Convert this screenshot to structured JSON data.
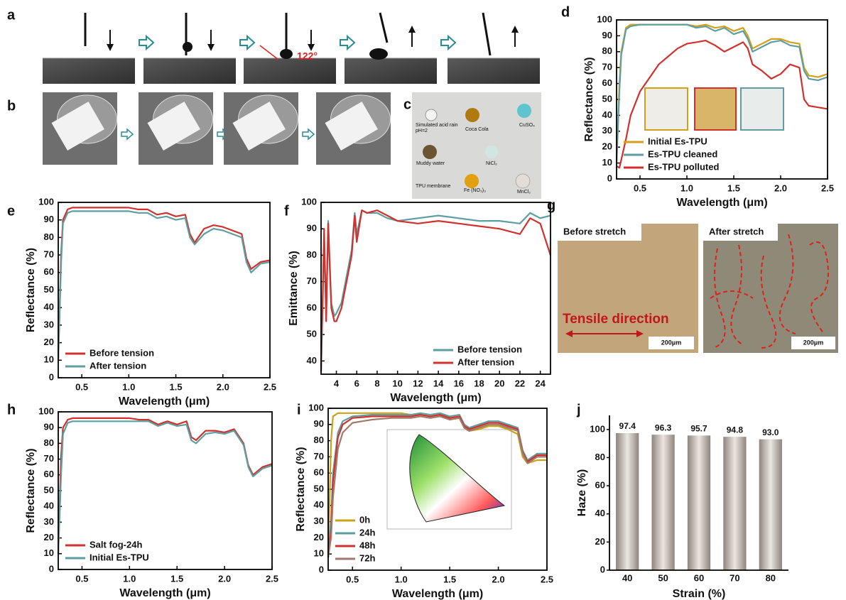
{
  "panel_labels": [
    "a",
    "b",
    "c",
    "d",
    "e",
    "f",
    "g",
    "h",
    "i",
    "j"
  ],
  "photos": {
    "a_angle": "122°",
    "c_labels": [
      "Simulated acid rain",
      "pH=2",
      "Coca Cola",
      "CuSO₄",
      "Muddy water",
      "NiCl₂",
      "TPU membrane",
      "Fe (NO₃)₃",
      "MnCl₂"
    ],
    "g_labels": [
      "Before stretch",
      "After stretch",
      "Tensile direction",
      "200μm",
      "200μm"
    ]
  },
  "chart_data": [
    {
      "type": "line",
      "x_label": "Wavelength (μm)",
      "y_label": "Reflectance (%)",
      "legend": "lower left",
      "x": [
        0.25,
        0.28,
        0.3,
        0.35,
        0.4,
        0.5,
        0.7,
        0.9,
        1.0,
        1.1,
        1.2,
        1.3,
        1.4,
        1.5,
        1.6,
        1.65,
        1.7,
        1.8,
        1.9,
        2.0,
        2.1,
        2.2,
        2.25,
        2.3,
        2.4,
        2.5
      ],
      "xlim": [
        0.25,
        2.5
      ],
      "xticks": [
        0.5,
        {
          "value": 1,
          "label": "1.0"
        },
        1.5,
        {
          "value": 2,
          "label": "2.0"
        },
        2.5
      ],
      "ylim": [
        0,
        100
      ],
      "yticks": [
        0,
        10,
        20,
        30,
        40,
        50,
        60,
        70,
        80,
        90,
        100
      ],
      "series": [
        {
          "name": "Initial Es-TPU",
          "color": "#d4a017",
          "values": [
            10,
            60,
            80,
            95,
            97,
            97,
            97,
            97,
            97,
            96,
            97,
            95,
            96,
            93,
            95,
            90,
            82,
            85,
            88,
            88,
            86,
            85,
            70,
            65,
            64,
            66
          ]
        },
        {
          "name": "Es-TPU cleaned",
          "color": "#5f9ea0",
          "values": [
            10,
            55,
            78,
            94,
            96,
            97,
            97,
            97,
            97,
            95,
            96,
            93,
            95,
            91,
            93,
            88,
            80,
            83,
            86,
            87,
            84,
            83,
            68,
            63,
            62,
            64
          ]
        },
        {
          "name": "Es-TPU polluted",
          "color": "#d0312d",
          "values": [
            8,
            7,
            12,
            25,
            40,
            55,
            72,
            82,
            85,
            86,
            87,
            84,
            80,
            83,
            86,
            82,
            72,
            68,
            63,
            66,
            72,
            70,
            50,
            46,
            45,
            44
          ]
        }
      ]
    },
    {
      "type": "line",
      "x_label": "Wavelength (μm)",
      "y_label": "Reflectance (%)",
      "legend": "lower left",
      "x": [
        0.25,
        0.28,
        0.3,
        0.35,
        0.4,
        0.5,
        0.7,
        0.9,
        1.0,
        1.1,
        1.2,
        1.3,
        1.4,
        1.5,
        1.6,
        1.65,
        1.7,
        1.8,
        1.9,
        2.0,
        2.1,
        2.2,
        2.25,
        2.3,
        2.4,
        2.5
      ],
      "xlim": [
        0.25,
        2.5
      ],
      "xticks": [
        0.5,
        {
          "value": 1,
          "label": "1.0"
        },
        1.5,
        {
          "value": 2,
          "label": "2.0"
        },
        2.5
      ],
      "ylim": [
        0,
        100
      ],
      "yticks": [
        0,
        10,
        20,
        30,
        40,
        50,
        60,
        70,
        80,
        90,
        100
      ],
      "series": [
        {
          "name": "Before tension",
          "color": "#d0312d",
          "values": [
            10,
            70,
            90,
            96,
            97,
            97,
            97,
            97,
            97,
            96,
            96,
            93,
            94,
            92,
            93,
            82,
            77,
            85,
            87,
            86,
            84,
            82,
            68,
            62,
            66,
            67
          ]
        },
        {
          "name": "After tension",
          "color": "#5f9ea0",
          "values": [
            10,
            65,
            88,
            94,
            95,
            95,
            95,
            95,
            95,
            94,
            94,
            91,
            92,
            90,
            91,
            80,
            76,
            82,
            85,
            84,
            82,
            80,
            66,
            60,
            65,
            66
          ]
        }
      ]
    },
    {
      "type": "line",
      "x_label": "Wavelength (μm)",
      "y_label": "Emittance (%)",
      "legend": "lower right",
      "x": [
        2.5,
        2.8,
        3,
        3.2,
        3.5,
        3.8,
        4,
        4.5,
        5,
        5.5,
        5.8,
        6,
        6.5,
        7,
        8,
        9,
        10,
        12,
        14,
        16,
        18,
        20,
        22,
        23,
        24,
        25
      ],
      "xlim": [
        2.5,
        25
      ],
      "xticks": [
        4,
        6,
        8,
        10,
        12,
        14,
        16,
        18,
        20,
        22,
        24
      ],
      "ylim": [
        35,
        100
      ],
      "yticks": [
        40,
        50,
        60,
        70,
        80,
        90,
        100
      ],
      "series": [
        {
          "name": "Before tension",
          "color": "#5f9ea0",
          "values": [
            36,
            85,
            58,
            93,
            62,
            57,
            58,
            62,
            72,
            82,
            96,
            88,
            97,
            96,
            96,
            94,
            93,
            94,
            95,
            94,
            93,
            93,
            92,
            96,
            94,
            95
          ]
        },
        {
          "name": "After  tension",
          "color": "#d0312d",
          "values": [
            36,
            90,
            55,
            92,
            60,
            55,
            55,
            60,
            70,
            80,
            95,
            85,
            97,
            96,
            97,
            95,
            93,
            92,
            93,
            92,
            91,
            90,
            88,
            94,
            92,
            80
          ]
        }
      ]
    },
    {
      "type": "line",
      "x_label": "Wavelength (μm)",
      "y_label": "Reflectance (%)",
      "legend": "lower left",
      "x": [
        0.25,
        0.28,
        0.3,
        0.35,
        0.4,
        0.5,
        0.7,
        0.9,
        1.0,
        1.1,
        1.2,
        1.3,
        1.4,
        1.5,
        1.6,
        1.65,
        1.7,
        1.8,
        1.9,
        2.0,
        2.1,
        2.2,
        2.25,
        2.3,
        2.4,
        2.5
      ],
      "xlim": [
        0.25,
        2.5
      ],
      "xticks": [
        0.5,
        {
          "value": 1,
          "label": "1.0"
        },
        1.5,
        {
          "value": 2,
          "label": "2.0"
        },
        2.5
      ],
      "ylim": [
        0,
        100
      ],
      "yticks": [
        0,
        10,
        20,
        30,
        40,
        50,
        60,
        70,
        80,
        90,
        100
      ],
      "series": [
        {
          "name": "Salt fog-24h",
          "color": "#d0312d",
          "values": [
            10,
            72,
            90,
            95,
            96,
            96,
            96,
            96,
            96,
            95,
            95,
            92,
            94,
            92,
            94,
            84,
            82,
            88,
            88,
            87,
            89,
            80,
            66,
            60,
            65,
            67
          ]
        },
        {
          "name": "Initial Es-TPU",
          "color": "#5f9ea0",
          "values": [
            10,
            60,
            86,
            93,
            94,
            94,
            94,
            94,
            94,
            94,
            94,
            91,
            93,
            91,
            92,
            82,
            80,
            86,
            87,
            86,
            88,
            79,
            65,
            59,
            64,
            66
          ]
        }
      ]
    },
    {
      "type": "line",
      "x_label": "Wavelength (μm)",
      "y_label": "Reflectance (%)",
      "legend": "lower left",
      "x": [
        0.25,
        0.28,
        0.3,
        0.35,
        0.4,
        0.5,
        0.7,
        0.9,
        1.0,
        1.1,
        1.2,
        1.3,
        1.4,
        1.5,
        1.6,
        1.65,
        1.7,
        1.8,
        1.9,
        2.0,
        2.1,
        2.2,
        2.25,
        2.3,
        2.4,
        2.5
      ],
      "xlim": [
        0.25,
        2.5
      ],
      "xticks": [
        0.5,
        {
          "value": 1,
          "label": "1.0"
        },
        1.5,
        {
          "value": 2,
          "label": "2.0"
        },
        2.5
      ],
      "ylim": [
        0,
        100
      ],
      "yticks": [
        0,
        10,
        20,
        30,
        40,
        50,
        60,
        70,
        80,
        90,
        100
      ],
      "series": [
        {
          "name": "0h",
          "color": "#c9a21a",
          "values": [
            8,
            80,
            95,
            97,
            97,
            97,
            97,
            97,
            97,
            96,
            96,
            95,
            96,
            93,
            94,
            88,
            86,
            87,
            89,
            89,
            87,
            84,
            70,
            66,
            68,
            68
          ]
        },
        {
          "name": "24h",
          "color": "#5f9ea0",
          "values": [
            8,
            30,
            60,
            85,
            92,
            95,
            96,
            96,
            96,
            96,
            97,
            96,
            97,
            95,
            96,
            90,
            88,
            90,
            92,
            92,
            90,
            88,
            74,
            68,
            72,
            72
          ]
        },
        {
          "name": "48h",
          "color": "#d0312d",
          "values": [
            8,
            25,
            55,
            82,
            90,
            94,
            95,
            95,
            95,
            95,
            96,
            95,
            96,
            94,
            95,
            89,
            87,
            89,
            91,
            91,
            89,
            87,
            73,
            67,
            71,
            71
          ]
        },
        {
          "name": "72h",
          "color": "#a07a6a",
          "values": [
            8,
            20,
            45,
            75,
            85,
            91,
            93,
            94,
            94,
            94,
            95,
            94,
            95,
            93,
            94,
            88,
            86,
            88,
            90,
            90,
            88,
            86,
            72,
            66,
            70,
            70
          ]
        }
      ]
    },
    {
      "type": "bar",
      "x_label": "Strain (%)",
      "y_label": "Haze (%)",
      "categories": [
        "40",
        "50",
        "60",
        "70",
        "80"
      ],
      "values": [
        97.4,
        96.3,
        95.7,
        94.8,
        93.0
      ],
      "value_labels": [
        "97.4",
        "96.3",
        "95.7",
        "94.8",
        "93.0"
      ],
      "ylim": [
        0,
        110
      ],
      "yticks": [
        0,
        20,
        40,
        60,
        80,
        100
      ],
      "color": "#b8ada5"
    }
  ]
}
